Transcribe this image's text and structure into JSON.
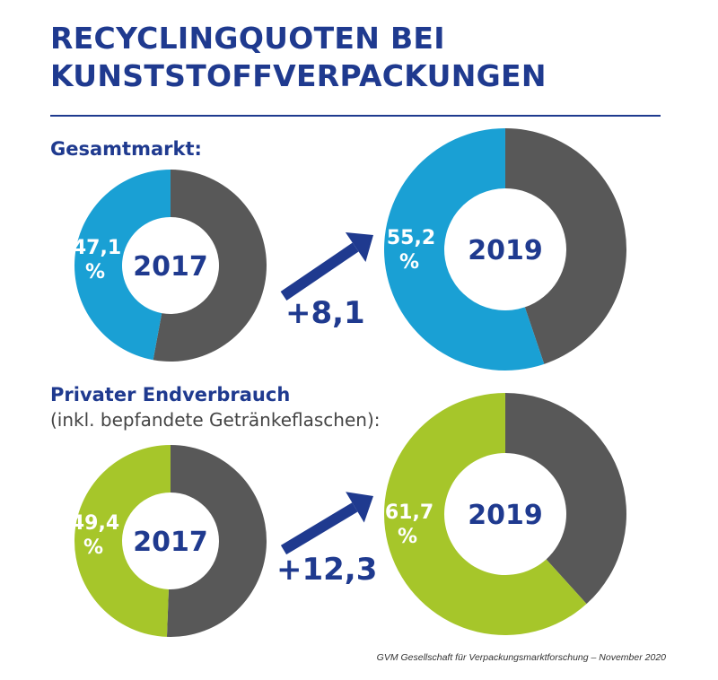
{
  "title_lines": [
    "RECYCLINGQUOTEN BEI",
    "KUNSTSTOFFVERPACKUNGEN"
  ],
  "source": "GVM Gesellschaft für Verpackungsmarktforschung – November 2020",
  "colors": {
    "brand_blue": "#1f3a8f",
    "dark_gray": "#585858",
    "cyan": "#1aa0d4",
    "green": "#a6c62a"
  },
  "chart_data": [
    {
      "type": "pie",
      "group": "Gesamtmarkt:",
      "group_sub": "",
      "change_label": "+8,1",
      "donuts": [
        {
          "year": "2017",
          "value": 47.1,
          "value_label": "47,1",
          "unit": "%"
        },
        {
          "year": "2019",
          "value": 55.2,
          "value_label": "55,2",
          "unit": "%"
        }
      ],
      "accent": "cyan"
    },
    {
      "type": "pie",
      "group": "Privater Endverbrauch",
      "group_sub": "(inkl. bepfandete Getränkeflaschen):",
      "change_label": "+12,3",
      "donuts": [
        {
          "year": "2017",
          "value": 49.4,
          "value_label": "49,4",
          "unit": "%"
        },
        {
          "year": "2019",
          "value": 61.7,
          "value_label": "61,7",
          "unit": "%"
        }
      ],
      "accent": "green"
    }
  ]
}
